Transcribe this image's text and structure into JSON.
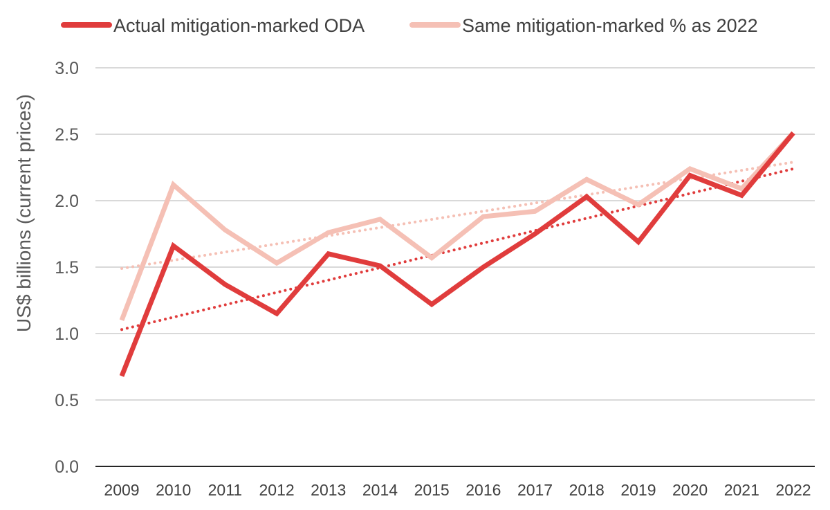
{
  "chart_data": {
    "type": "line",
    "title": "",
    "xlabel": "",
    "ylabel": "US$ billions (current prices)",
    "ylim": [
      0,
      3
    ],
    "yticks": [
      0.0,
      0.5,
      1.0,
      1.5,
      2.0,
      2.5,
      3.0
    ],
    "ytick_labels": [
      "0.0",
      "0.5",
      "1.0",
      "1.5",
      "2.0",
      "2.5",
      "3.0"
    ],
    "grid": true,
    "legend_position": "top",
    "x": [
      "2009",
      "2010",
      "2011",
      "2012",
      "2013",
      "2014",
      "2015",
      "2016",
      "2017",
      "2018",
      "2019",
      "2020",
      "2021",
      "2022"
    ],
    "series": [
      {
        "name": "Actual mitigation-marked ODA",
        "color": "#e03c3c",
        "values": [
          0.68,
          1.66,
          1.37,
          1.15,
          1.6,
          1.51,
          1.22,
          1.5,
          1.75,
          2.03,
          1.69,
          2.19,
          2.04,
          2.51
        ],
        "trendline": {
          "style": "dotted",
          "start": 1.03,
          "end": 2.24
        }
      },
      {
        "name": "Same mitigation-marked % as 2022",
        "color": "#f5c0b5",
        "values": [
          1.1,
          2.12,
          1.78,
          1.53,
          1.76,
          1.86,
          1.57,
          1.88,
          1.92,
          2.16,
          1.97,
          2.24,
          2.09,
          2.51
        ],
        "trendline": {
          "style": "dotted",
          "start": 1.49,
          "end": 2.29
        }
      }
    ]
  }
}
